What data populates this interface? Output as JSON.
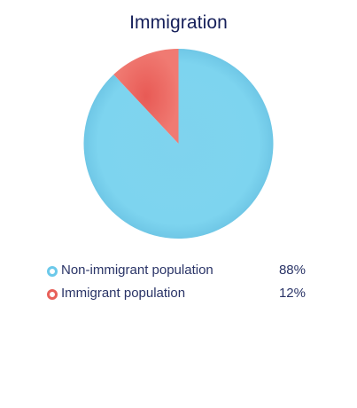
{
  "chart_data": {
    "type": "pie",
    "title": "Immigration",
    "slices": [
      {
        "label": "Non-immigrant population",
        "value": 88,
        "display": "88%",
        "color": "#7dd6f0"
      },
      {
        "label": "Immigrant population",
        "value": 12,
        "display": "12%",
        "color": "#ee6b63"
      }
    ],
    "legend_position": "bottom"
  }
}
